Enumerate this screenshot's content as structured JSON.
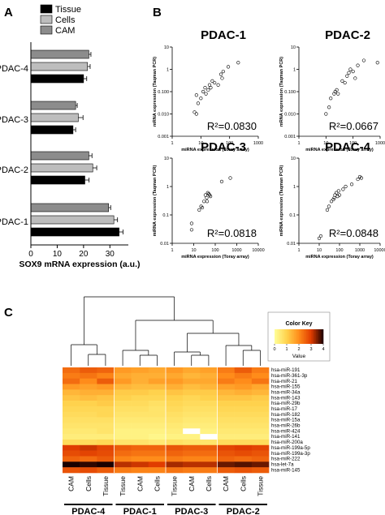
{
  "panel_letters": [
    "A",
    "B",
    "C"
  ],
  "chart_data": [
    {
      "type": "bar",
      "orientation": "horizontal",
      "categories": [
        "PDAC-4",
        "PDAC-3",
        "PDAC-2",
        "PDAC-1"
      ],
      "series": [
        {
          "name": "Tissue",
          "color": "#000000",
          "values": [
            20,
            16,
            20.5,
            33.5
          ],
          "errors": [
            1.2,
            1.0,
            1.6,
            1.5
          ]
        },
        {
          "name": "Cells",
          "color": "#bdbdbd",
          "values": [
            21.5,
            18,
            23.5,
            31.5
          ],
          "errors": [
            1.0,
            1.8,
            1.5,
            1.4
          ]
        },
        {
          "name": "CAM",
          "color": "#8c8c8c",
          "values": [
            22,
            17,
            22,
            29.5
          ],
          "errors": [
            0.8,
            0.6,
            1.2,
            0.8
          ]
        }
      ],
      "xlabel": "SOX9 mRNA expression (a.u.)",
      "xticks": [
        "0",
        "10",
        "20",
        "30"
      ],
      "xlim": [
        0,
        37
      ],
      "legend": "top"
    },
    {
      "type": "scatter",
      "panels": [
        {
          "title": "PDAC-1",
          "r2": "R²=0.0830",
          "xlim": [
            1,
            1000
          ],
          "ylim": [
            0.001,
            10
          ],
          "xticks": [
            "1",
            "10",
            "100",
            "1000"
          ],
          "yticks": [
            "0.001",
            "0.010",
            "0.100",
            "1",
            "10"
          ],
          "xlabel": "miRNA expression (Toray array)",
          "ylabel": "mRNA expression (Taqman PCR)",
          "points": [
            [
              6,
              0.012
            ],
            [
              7,
              0.01
            ],
            [
              7,
              0.07
            ],
            [
              8,
              0.03
            ],
            [
              10,
              0.05
            ],
            [
              12,
              0.1
            ],
            [
              14,
              0.15
            ],
            [
              15,
              0.08
            ],
            [
              18,
              0.12
            ],
            [
              20,
              0.2
            ],
            [
              22,
              0.15
            ],
            [
              25,
              0.3
            ],
            [
              30,
              0.25
            ],
            [
              40,
              0.2
            ],
            [
              50,
              0.6
            ],
            [
              55,
              0.4
            ],
            [
              60,
              0.8
            ],
            [
              90,
              1.3
            ],
            [
              200,
              2
            ]
          ]
        },
        {
          "title": "PDAC-2",
          "r2": "R²=0.0667",
          "xlim": [
            1,
            1000
          ],
          "ylim": [
            0.001,
            10
          ],
          "xticks": [
            "1",
            "10",
            "100",
            "1000"
          ],
          "yticks": [
            "0.001",
            "0.010",
            "0.100",
            "1",
            "10"
          ],
          "xlabel": "miRNA expression (Toray array)",
          "ylabel": "mRNA expression (Taqman PCR)",
          "points": [
            [
              10,
              0.01
            ],
            [
              13,
              0.02
            ],
            [
              15,
              0.05
            ],
            [
              20,
              0.08
            ],
            [
              22,
              0.1
            ],
            [
              25,
              0.12
            ],
            [
              28,
              0.08
            ],
            [
              40,
              0.3
            ],
            [
              50,
              0.25
            ],
            [
              60,
              0.5
            ],
            [
              70,
              0.7
            ],
            [
              80,
              1.0
            ],
            [
              100,
              0.8
            ],
            [
              120,
              0.4
            ],
            [
              150,
              1.5
            ],
            [
              250,
              2.5
            ],
            [
              800,
              2
            ]
          ]
        },
        {
          "title": "PDAC-3",
          "r2": "R²=0.0818",
          "xlim": [
            1,
            10000
          ],
          "ylim": [
            0.01,
            10
          ],
          "xticks": [
            "1",
            "10",
            "100",
            "1000",
            "10000"
          ],
          "yticks": [
            "0.01",
            "0.1",
            "1",
            "10"
          ],
          "xlabel": "miRNA expression (Toray array)",
          "ylabel": "miRNA expression (Taqman PCR)",
          "points": [
            [
              8,
              0.03
            ],
            [
              8,
              0.05
            ],
            [
              18,
              0.15
            ],
            [
              22,
              0.2
            ],
            [
              25,
              0.18
            ],
            [
              30,
              0.3
            ],
            [
              35,
              0.5
            ],
            [
              40,
              0.4
            ],
            [
              42,
              0.3
            ],
            [
              45,
              0.6
            ],
            [
              50,
              0.55
            ],
            [
              55,
              0.5
            ],
            [
              60,
              0.45
            ],
            [
              200,
              1.5
            ],
            [
              500,
              2
            ]
          ]
        },
        {
          "title": "PDAC-4",
          "r2": "R²=0.0848",
          "xlim": [
            1,
            10000
          ],
          "ylim": [
            0.01,
            10
          ],
          "xticks": [
            "1",
            "10",
            "100",
            "1000",
            "10000"
          ],
          "yticks": [
            "0.01",
            "0.1",
            "1",
            "10"
          ],
          "xlabel": "miRNA expression (Toray array)",
          "ylabel": "miRNA expression (Taqman PCR)",
          "points": [
            [
              10,
              0.015
            ],
            [
              12,
              0.018
            ],
            [
              25,
              0.15
            ],
            [
              30,
              0.2
            ],
            [
              40,
              0.3
            ],
            [
              50,
              0.35
            ],
            [
              55,
              0.4
            ],
            [
              60,
              0.5
            ],
            [
              70,
              0.6
            ],
            [
              80,
              0.45
            ],
            [
              90,
              0.7
            ],
            [
              100,
              0.5
            ],
            [
              150,
              0.8
            ],
            [
              200,
              1.0
            ],
            [
              400,
              1.2
            ],
            [
              800,
              1.8
            ],
            [
              1000,
              2.2
            ],
            [
              1200,
              2.0
            ]
          ]
        }
      ]
    },
    {
      "type": "heatmap",
      "rows": [
        "hsa-miR-191",
        "hsa-miR-361-3p",
        "hsa-miR-21",
        "hsa-miR-155",
        "hsa-miR-34a",
        "hsa-miR-143",
        "hsa-miR-29b",
        "hsa-miR-17",
        "hsa-miR-182",
        "hsa-miR-15a",
        "hsa-miR-26b",
        "hsa-miR-424",
        "hsa-miR-141",
        "hsa-miR-200a",
        "hsa-miR-199a-5p",
        "hsa-miR-199a-3p",
        "hsa-miR-222",
        "hsa-let-7a",
        "hsa-miR-145"
      ],
      "columns": [
        "CAM",
        "Cells",
        "Tissue",
        "Tissue",
        "CAM",
        "Cells",
        "Tissue",
        "CAM",
        "Cells",
        "CAM",
        "Cells",
        "Tissue"
      ],
      "groups": [
        {
          "name": "PDAC-4",
          "span": 3
        },
        {
          "name": "PDAC-1",
          "span": 3
        },
        {
          "name": "PDAC-3",
          "span": 3
        },
        {
          "name": "PDAC-2",
          "span": 3
        }
      ],
      "values": [
        [
          2.4,
          2.6,
          2.5,
          1.8,
          1.7,
          1.6,
          1.8,
          1.6,
          1.7,
          2.2,
          2.6,
          2.2
        ],
        [
          2.2,
          2.3,
          2.1,
          1.6,
          1.5,
          1.5,
          1.6,
          1.4,
          1.5,
          2.0,
          2.2,
          2.0
        ],
        [
          2.4,
          2.0,
          2.6,
          1.8,
          1.5,
          1.7,
          1.8,
          1.6,
          1.6,
          2.2,
          2.0,
          2.3
        ],
        [
          1.8,
          1.7,
          1.8,
          1.4,
          1.3,
          1.3,
          1.5,
          1.3,
          1.4,
          1.7,
          1.8,
          1.6
        ],
        [
          1.4,
          1.5,
          1.5,
          1.1,
          1.1,
          1.0,
          1.2,
          1.1,
          1.1,
          1.4,
          1.5,
          1.4
        ],
        [
          1.2,
          1.3,
          1.2,
          1.0,
          0.9,
          0.9,
          1.0,
          0.9,
          1.0,
          1.2,
          1.2,
          1.1
        ],
        [
          1.0,
          1.0,
          1.1,
          0.8,
          0.8,
          0.7,
          0.9,
          0.8,
          0.8,
          1.0,
          1.0,
          1.0
        ],
        [
          0.9,
          0.9,
          0.9,
          0.7,
          0.7,
          0.6,
          0.8,
          0.7,
          0.7,
          0.9,
          0.9,
          0.9
        ],
        [
          0.8,
          0.8,
          0.9,
          0.6,
          0.6,
          0.6,
          0.7,
          0.6,
          0.6,
          0.8,
          0.8,
          0.8
        ],
        [
          0.7,
          0.7,
          0.7,
          0.5,
          0.5,
          0.5,
          0.6,
          0.5,
          0.5,
          0.7,
          0.7,
          0.7
        ],
        [
          0.6,
          0.6,
          0.6,
          0.4,
          0.4,
          0.4,
          0.5,
          0.4,
          0.4,
          0.6,
          0.6,
          0.6
        ],
        [
          0.5,
          0.5,
          0.6,
          0.3,
          0.3,
          0.3,
          0.4,
          0.0,
          0.3,
          0.5,
          0.5,
          0.5
        ],
        [
          0.4,
          0.4,
          0.4,
          0.3,
          0.3,
          0.2,
          0.3,
          0.3,
          0.0,
          0.4,
          0.4,
          0.4
        ],
        [
          0.8,
          0.8,
          0.9,
          0.6,
          0.6,
          0.5,
          0.7,
          0.6,
          0.6,
          0.8,
          0.8,
          0.8
        ],
        [
          3.0,
          3.1,
          2.9,
          2.6,
          2.5,
          2.5,
          2.7,
          2.6,
          2.6,
          2.9,
          3.0,
          2.9
        ],
        [
          2.8,
          2.9,
          2.8,
          2.4,
          2.3,
          2.3,
          2.5,
          2.4,
          2.4,
          2.7,
          2.8,
          2.7
        ],
        [
          2.5,
          2.4,
          2.6,
          2.1,
          2.0,
          2.0,
          2.2,
          2.1,
          2.1,
          2.5,
          2.4,
          2.5
        ],
        [
          4.0,
          3.9,
          4.0,
          3.2,
          3.1,
          3.0,
          3.3,
          3.2,
          3.2,
          3.6,
          3.7,
          3.6
        ],
        [
          2.7,
          2.8,
          2.6,
          2.2,
          2.1,
          2.1,
          2.3,
          2.2,
          2.2,
          2.6,
          2.7,
          2.6
        ]
      ],
      "color_key": {
        "title": "Color Key",
        "label": "Value",
        "ticks": [
          "0",
          "1",
          "2",
          "3",
          "4"
        ],
        "range": [
          0,
          4
        ],
        "stops": [
          "#ffff99",
          "#ffd24d",
          "#ff8c1a",
          "#e03c00",
          "#1a0000"
        ]
      }
    }
  ]
}
